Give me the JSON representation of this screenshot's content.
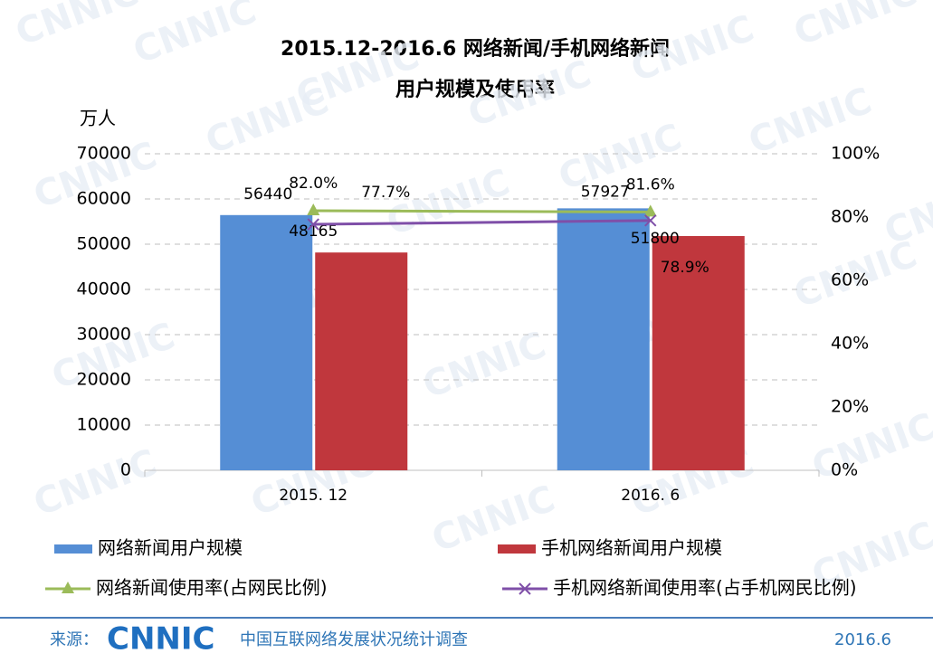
{
  "chart_data": {
    "type": "bar",
    "title": [
      "2015.12-2016.6 网络新闻/手机网络新闻",
      "用户规模及使用率"
    ],
    "y_label": "万人",
    "categories": [
      "2015. 12",
      "2016. 6"
    ],
    "series": [
      {
        "name": "网络新闻用户规模",
        "color": "#558ed5",
        "type": "bar",
        "values": [
          56440,
          57927
        ]
      },
      {
        "name": "手机网络新闻用户规模",
        "color": "#c0373d",
        "type": "bar",
        "values": [
          48165,
          51800
        ]
      },
      {
        "name": "网络新闻使用率(占网民比例)",
        "color": "#9bbb59",
        "type": "line",
        "marker": "triangle",
        "axis": "y2",
        "values": [
          82.0,
          81.6
        ],
        "value_labels": [
          "82.0%",
          "81.6%"
        ]
      },
      {
        "name": "手机网络新闻使用率(占手机网民比例)",
        "color": "#7f4fa8",
        "type": "line",
        "marker": "x",
        "axis": "y2",
        "values": [
          77.7,
          78.9
        ],
        "value_labels": [
          "77.7%",
          "78.9%"
        ]
      }
    ],
    "ylim": [
      0,
      70000
    ],
    "yticks": [
      0,
      10000,
      20000,
      30000,
      40000,
      50000,
      60000,
      70000
    ],
    "y2lim": [
      0,
      100
    ],
    "y2ticks": [
      {
        "value": 0,
        "label": "0%"
      },
      {
        "value": 20,
        "label": "20%"
      },
      {
        "value": 40,
        "label": "40%"
      },
      {
        "value": 60,
        "label": "60%"
      },
      {
        "value": 80,
        "label": "80%"
      },
      {
        "value": 100,
        "label": "100%"
      }
    ],
    "grid": true
  },
  "watermark": "CNNIC",
  "source": {
    "prefix": "来源：",
    "logo": "CNNIC",
    "text": "中国互联网络发展状况统计调查",
    "date": "2016.6"
  }
}
